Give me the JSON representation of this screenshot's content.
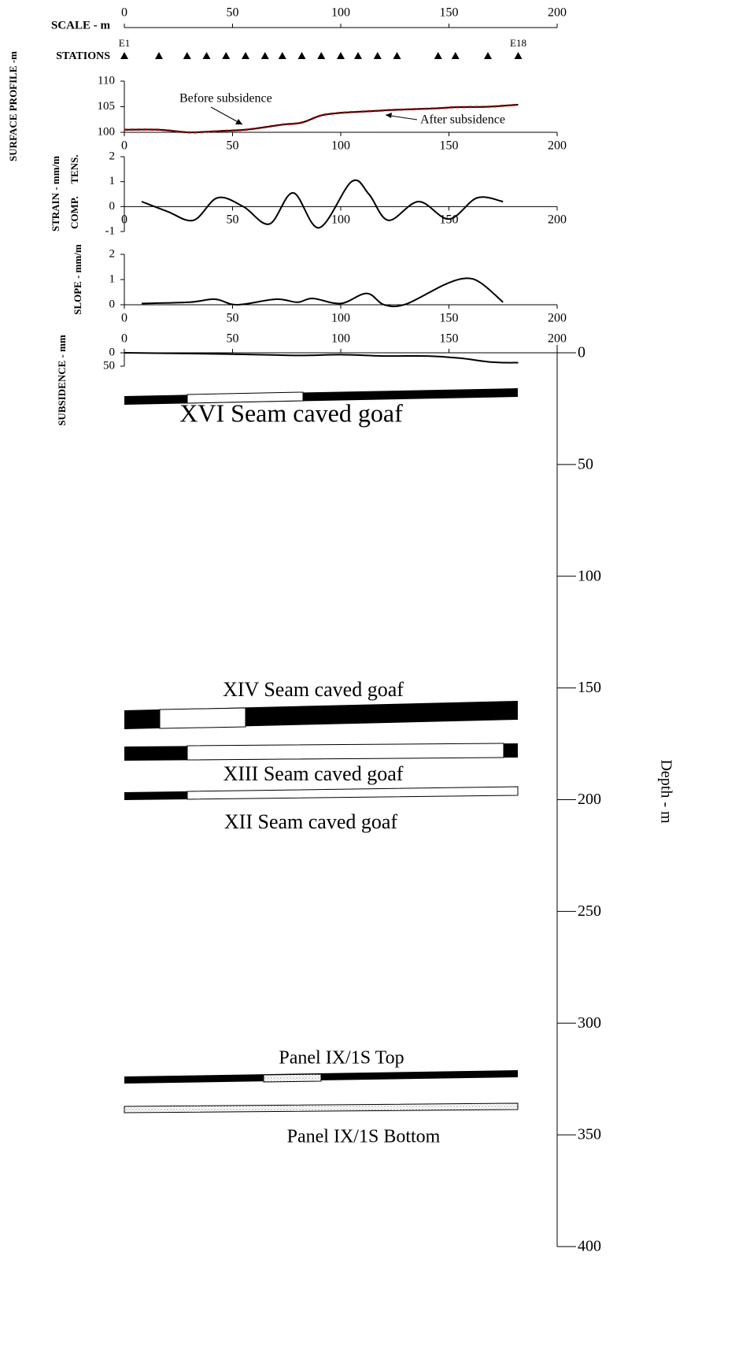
{
  "chart_data": [
    {
      "type": "axis",
      "title": "SCALE - m",
      "xlim": [
        0,
        200
      ],
      "xticks": [
        0,
        50,
        100,
        150,
        200
      ]
    },
    {
      "type": "stations",
      "title": "STATIONS",
      "x": [
        0,
        16,
        29,
        38,
        47,
        56,
        65,
        73,
        82,
        91,
        100,
        108,
        117,
        126,
        145,
        153,
        168,
        182
      ],
      "labels": [
        "E1",
        null,
        null,
        null,
        null,
        null,
        null,
        null,
        null,
        null,
        null,
        null,
        null,
        null,
        null,
        null,
        null,
        "E18"
      ]
    },
    {
      "type": "line",
      "ylabel": "SURFACE PROFILE -m",
      "xlim": [
        0,
        200
      ],
      "xticks": [
        0,
        50,
        100,
        150,
        200
      ],
      "ylim": [
        100,
        110
      ],
      "yticks": [
        100,
        105,
        110
      ],
      "x": [
        0,
        16,
        29,
        38,
        47,
        56,
        65,
        73,
        82,
        91,
        100,
        108,
        117,
        126,
        145,
        153,
        168,
        182
      ],
      "series": [
        {
          "name": "Before subsidence",
          "color": "#8b0000",
          "dash": true,
          "values": [
            100.5,
            100.5,
            100.0,
            100.1,
            100.3,
            100.5,
            101.0,
            101.5,
            101.9,
            103.3,
            103.8,
            104.0,
            104.2,
            104.4,
            104.7,
            104.9,
            105.0,
            105.4
          ]
        },
        {
          "name": "After subsidence",
          "color": "#000000",
          "dash": false,
          "values": [
            100.5,
            100.5,
            100.0,
            100.1,
            100.3,
            100.5,
            101.0,
            101.5,
            101.9,
            103.3,
            103.8,
            104.0,
            104.2,
            104.4,
            104.7,
            104.9,
            105.0,
            105.4
          ]
        }
      ]
    },
    {
      "type": "line",
      "ylabel": "STRAIN - mm/m",
      "sublabels": [
        "COMP.",
        "TENS."
      ],
      "xlim": [
        0,
        200
      ],
      "xticks": [
        0,
        50,
        100,
        150,
        200
      ],
      "ylim": [
        -1,
        2
      ],
      "yticks": [
        -1,
        0,
        1,
        2
      ],
      "x": [
        8,
        20,
        32,
        43,
        55,
        67,
        78,
        90,
        105,
        113,
        122,
        136,
        150,
        163,
        175
      ],
      "series": [
        {
          "name": "Strain",
          "color": "#000000",
          "dash": false,
          "values": [
            0.2,
            -0.2,
            -0.55,
            0.35,
            0,
            -0.7,
            0.55,
            -0.85,
            1.0,
            0.5,
            -0.55,
            0.2,
            -0.5,
            0.35,
            0.2
          ]
        }
      ]
    },
    {
      "type": "line",
      "ylabel": "SLOPE - mm/m",
      "xlim": [
        0,
        200
      ],
      "xticks": [
        0,
        50,
        100,
        150,
        200
      ],
      "ylim": [
        0,
        2
      ],
      "yticks": [
        0,
        1,
        2
      ],
      "x": [
        8,
        30,
        42,
        52,
        70,
        80,
        87,
        100,
        112,
        120,
        130,
        148,
        158,
        165,
        175
      ],
      "series": [
        {
          "name": "Slope",
          "color": "#000000",
          "dash": false,
          "values": [
            0.05,
            0.1,
            0.22,
            0,
            0.22,
            0.1,
            0.25,
            0.05,
            0.45,
            0,
            0.02,
            0.8,
            1.05,
            0.85,
            0.1
          ]
        }
      ]
    },
    {
      "type": "line",
      "ylabel": "SUBSIDENCE - mm",
      "reverse": true,
      "xlim": [
        0,
        200
      ],
      "xticks": [
        0,
        50,
        100,
        150,
        200
      ],
      "ylim": [
        0,
        50
      ],
      "yticks": [
        0,
        50
      ],
      "x": [
        0,
        50,
        80,
        100,
        120,
        140,
        155,
        170,
        182
      ],
      "series": [
        {
          "name": "Subsidence",
          "color": "#000000",
          "dash": false,
          "values": [
            0,
            5,
            10,
            7,
            12,
            12,
            20,
            35,
            37
          ]
        }
      ]
    },
    {
      "type": "section",
      "ylabel": "Depth - m",
      "ylim": [
        0,
        400
      ],
      "yticks": [
        0,
        50,
        100,
        150,
        200,
        250,
        300,
        350,
        400
      ],
      "labels": [
        "XVI Seam caved goaf",
        "XIV Seam caved goaf",
        "XIII Seam caved goaf",
        "XII Seam caved goaf",
        "Panel IX/1S Top",
        "Panel IX/1S Bottom"
      ]
    }
  ]
}
